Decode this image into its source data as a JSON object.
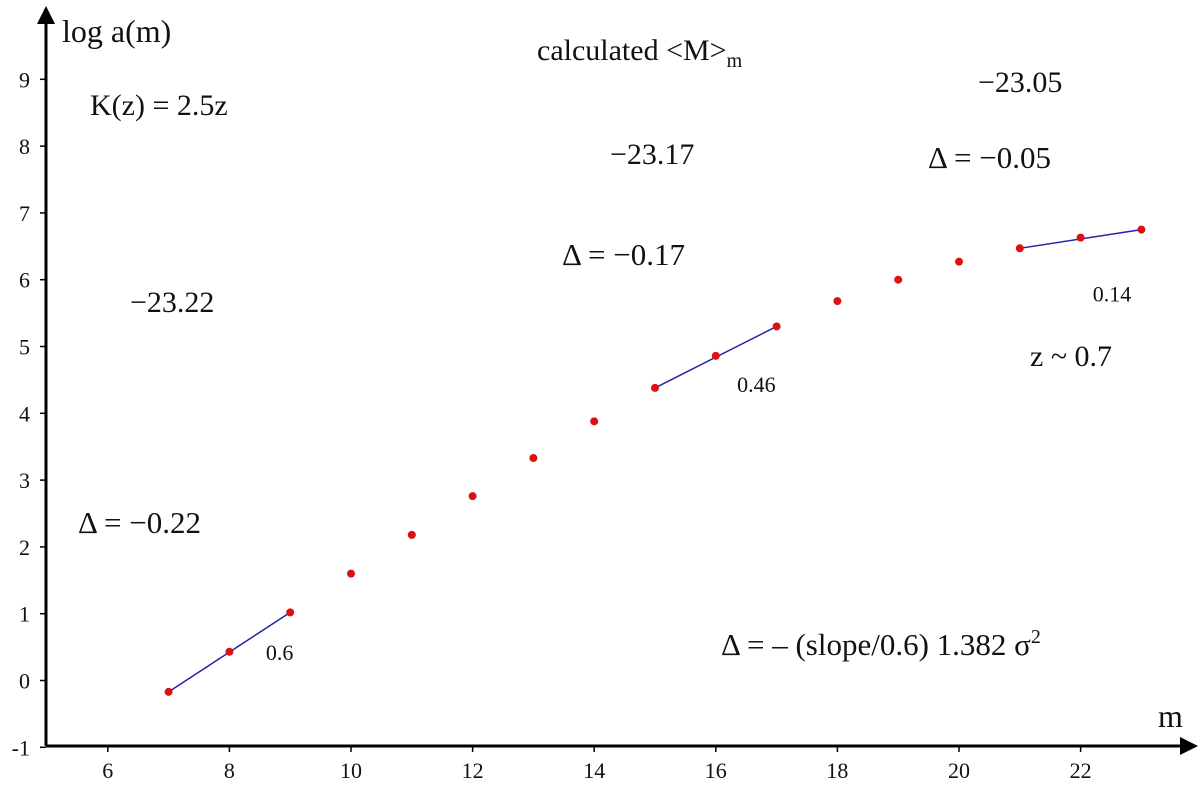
{
  "chart_data": {
    "type": "scatter",
    "title": "",
    "xlabel": "m",
    "ylabel": "log a(m)",
    "xlim": [
      5,
      24.5
    ],
    "ylim": [
      -1,
      9.9
    ],
    "grid": false,
    "x_ticks": [
      6,
      8,
      10,
      12,
      14,
      16,
      18,
      20,
      22
    ],
    "y_ticks": [
      -1,
      0,
      1,
      2,
      3,
      4,
      5,
      6,
      7,
      8,
      9
    ],
    "x_tick_labels": [
      "6",
      "8",
      "10",
      "12",
      "14",
      "16",
      "18",
      "20",
      "22"
    ],
    "y_tick_labels": [
      "-1",
      "0",
      "1",
      "2",
      "3",
      "4",
      "5",
      "6",
      "7",
      "8",
      "9"
    ],
    "colors": {
      "points": "#dd1111",
      "fit_lines": "#2222aa",
      "axes": "#000000"
    },
    "series": [
      {
        "x": [
          7,
          8,
          9,
          10,
          11,
          12,
          13,
          14,
          15,
          16,
          17,
          18,
          19,
          20,
          21,
          22,
          23
        ],
        "y": [
          -0.17,
          0.43,
          1.02,
          1.6,
          2.18,
          2.76,
          3.33,
          3.88,
          4.38,
          4.86,
          5.3,
          5.68,
          6.0,
          6.27,
          6.47,
          6.63,
          6.75
        ]
      }
    ],
    "fit_segments": [
      {
        "x": [
          7,
          9
        ],
        "y": [
          -0.17,
          1.02
        ],
        "slope_label": "0.6"
      },
      {
        "x": [
          15,
          17
        ],
        "y": [
          4.38,
          5.3
        ],
        "slope_label": "0.46"
      },
      {
        "x": [
          21,
          23
        ],
        "y": [
          6.47,
          6.75
        ],
        "slope_label": "0.14"
      }
    ]
  },
  "annotations": {
    "calculated_main": "calculated <M>",
    "calculated_sub": "m",
    "k_formula": "K(z) = 2.5z",
    "mag_left": "−23.22",
    "delta_left": "Δ = −0.22",
    "mag_mid": "−23.17",
    "delta_mid": "Δ = −0.17",
    "mag_right": "−23.05",
    "delta_right": "Δ = −0.05",
    "z_label": "z ~ 0.7",
    "formula_main": "Δ = – (slope/0.6) 1.382 σ",
    "formula_sup": "2"
  }
}
